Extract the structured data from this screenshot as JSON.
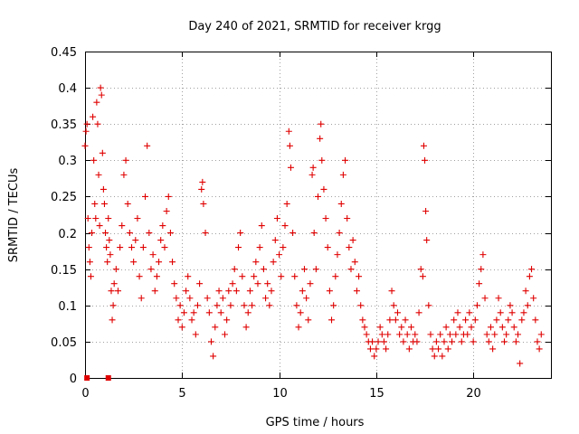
{
  "chart_data": {
    "type": "scatter",
    "title": "Day 240 of 2021, SRMTID for receiver krgg",
    "xlabel": "GPS time / hours",
    "ylabel": "SRMTID / TECUs",
    "xlim": [
      0,
      24
    ],
    "ylim": [
      0,
      0.45
    ],
    "x_ticks": [
      0,
      5,
      10,
      15,
      20
    ],
    "x_tick_labels": [
      "0",
      "5",
      "10",
      "15",
      "20"
    ],
    "y_ticks": [
      0,
      0.05,
      0.1,
      0.15,
      0.2,
      0.25,
      0.3,
      0.35,
      0.4,
      0.45
    ],
    "y_tick_labels": [
      "0",
      "0.05",
      "0.1",
      "0.15",
      "0.2",
      "0.25",
      "0.3",
      "0.35",
      "0.4",
      "0.45"
    ],
    "grid": true,
    "marker": "plus",
    "color": "#e00000",
    "zero_markers": [
      {
        "x": 0.1,
        "y": 0
      },
      {
        "x": 1.2,
        "y": 0
      }
    ],
    "series": [
      {
        "name": "SRMTID",
        "note": "representative sample of the dense point cloud",
        "points": [
          [
            0.0,
            0.32
          ],
          [
            0.05,
            0.34
          ],
          [
            0.1,
            0.35
          ],
          [
            0.15,
            0.22
          ],
          [
            0.2,
            0.18
          ],
          [
            0.25,
            0.16
          ],
          [
            0.3,
            0.14
          ],
          [
            0.35,
            0.2
          ],
          [
            0.4,
            0.36
          ],
          [
            0.45,
            0.3
          ],
          [
            0.5,
            0.24
          ],
          [
            0.55,
            0.22
          ],
          [
            0.6,
            0.38
          ],
          [
            0.65,
            0.35
          ],
          [
            0.7,
            0.28
          ],
          [
            0.75,
            0.21
          ],
          [
            0.8,
            0.4
          ],
          [
            0.85,
            0.39
          ],
          [
            0.9,
            0.31
          ],
          [
            0.95,
            0.26
          ],
          [
            1.0,
            0.24
          ],
          [
            1.05,
            0.2
          ],
          [
            1.1,
            0.18
          ],
          [
            1.15,
            0.16
          ],
          [
            1.2,
            0.22
          ],
          [
            1.25,
            0.19
          ],
          [
            1.3,
            0.17
          ],
          [
            1.35,
            0.12
          ],
          [
            1.4,
            0.08
          ],
          [
            1.45,
            0.1
          ],
          [
            1.5,
            0.13
          ],
          [
            1.6,
            0.15
          ],
          [
            1.7,
            0.12
          ],
          [
            1.8,
            0.18
          ],
          [
            1.9,
            0.21
          ],
          [
            2.0,
            0.28
          ],
          [
            2.1,
            0.3
          ],
          [
            2.2,
            0.24
          ],
          [
            2.3,
            0.2
          ],
          [
            2.4,
            0.18
          ],
          [
            2.5,
            0.16
          ],
          [
            2.6,
            0.19
          ],
          [
            2.7,
            0.22
          ],
          [
            2.8,
            0.14
          ],
          [
            2.9,
            0.11
          ],
          [
            3.0,
            0.18
          ],
          [
            3.1,
            0.25
          ],
          [
            3.2,
            0.32
          ],
          [
            3.3,
            0.2
          ],
          [
            3.4,
            0.15
          ],
          [
            3.5,
            0.17
          ],
          [
            3.6,
            0.12
          ],
          [
            3.7,
            0.14
          ],
          [
            3.8,
            0.16
          ],
          [
            3.9,
            0.19
          ],
          [
            4.0,
            0.21
          ],
          [
            4.1,
            0.18
          ],
          [
            4.2,
            0.23
          ],
          [
            4.3,
            0.25
          ],
          [
            4.4,
            0.2
          ],
          [
            4.5,
            0.16
          ],
          [
            4.6,
            0.13
          ],
          [
            4.7,
            0.11
          ],
          [
            4.8,
            0.08
          ],
          [
            4.9,
            0.1
          ],
          [
            5.0,
            0.07
          ],
          [
            5.1,
            0.09
          ],
          [
            5.2,
            0.12
          ],
          [
            5.3,
            0.14
          ],
          [
            5.4,
            0.11
          ],
          [
            5.5,
            0.08
          ],
          [
            5.6,
            0.09
          ],
          [
            5.7,
            0.06
          ],
          [
            5.8,
            0.1
          ],
          [
            5.9,
            0.13
          ],
          [
            6.0,
            0.26
          ],
          [
            6.05,
            0.27
          ],
          [
            6.1,
            0.24
          ],
          [
            6.2,
            0.2
          ],
          [
            6.3,
            0.11
          ],
          [
            6.4,
            0.09
          ],
          [
            6.5,
            0.05
          ],
          [
            6.6,
            0.03
          ],
          [
            6.7,
            0.07
          ],
          [
            6.8,
            0.1
          ],
          [
            6.9,
            0.12
          ],
          [
            7.0,
            0.09
          ],
          [
            7.1,
            0.11
          ],
          [
            7.2,
            0.06
          ],
          [
            7.3,
            0.08
          ],
          [
            7.4,
            0.12
          ],
          [
            7.5,
            0.1
          ],
          [
            7.6,
            0.13
          ],
          [
            7.7,
            0.15
          ],
          [
            7.8,
            0.12
          ],
          [
            7.9,
            0.18
          ],
          [
            8.0,
            0.2
          ],
          [
            8.1,
            0.14
          ],
          [
            8.2,
            0.1
          ],
          [
            8.3,
            0.07
          ],
          [
            8.4,
            0.09
          ],
          [
            8.5,
            0.12
          ],
          [
            8.6,
            0.1
          ],
          [
            8.7,
            0.14
          ],
          [
            8.8,
            0.16
          ],
          [
            8.9,
            0.13
          ],
          [
            9.0,
            0.18
          ],
          [
            9.1,
            0.21
          ],
          [
            9.2,
            0.15
          ],
          [
            9.3,
            0.11
          ],
          [
            9.4,
            0.13
          ],
          [
            9.5,
            0.1
          ],
          [
            9.6,
            0.12
          ],
          [
            9.7,
            0.16
          ],
          [
            9.8,
            0.19
          ],
          [
            9.9,
            0.22
          ],
          [
            10.0,
            0.17
          ],
          [
            10.1,
            0.14
          ],
          [
            10.2,
            0.18
          ],
          [
            10.3,
            0.21
          ],
          [
            10.4,
            0.24
          ],
          [
            10.5,
            0.34
          ],
          [
            10.55,
            0.32
          ],
          [
            10.6,
            0.29
          ],
          [
            10.7,
            0.2
          ],
          [
            10.8,
            0.14
          ],
          [
            10.9,
            0.1
          ],
          [
            11.0,
            0.07
          ],
          [
            11.1,
            0.09
          ],
          [
            11.2,
            0.12
          ],
          [
            11.3,
            0.15
          ],
          [
            11.4,
            0.11
          ],
          [
            11.5,
            0.08
          ],
          [
            11.6,
            0.13
          ],
          [
            11.7,
            0.28
          ],
          [
            11.75,
            0.29
          ],
          [
            11.8,
            0.2
          ],
          [
            11.9,
            0.15
          ],
          [
            12.0,
            0.25
          ],
          [
            12.1,
            0.33
          ],
          [
            12.15,
            0.35
          ],
          [
            12.2,
            0.3
          ],
          [
            12.3,
            0.26
          ],
          [
            12.4,
            0.22
          ],
          [
            12.5,
            0.18
          ],
          [
            12.6,
            0.12
          ],
          [
            12.7,
            0.08
          ],
          [
            12.8,
            0.1
          ],
          [
            12.9,
            0.14
          ],
          [
            13.0,
            0.17
          ],
          [
            13.1,
            0.2
          ],
          [
            13.2,
            0.24
          ],
          [
            13.3,
            0.28
          ],
          [
            13.4,
            0.3
          ],
          [
            13.5,
            0.22
          ],
          [
            13.6,
            0.18
          ],
          [
            13.7,
            0.15
          ],
          [
            13.8,
            0.19
          ],
          [
            13.9,
            0.16
          ],
          [
            14.0,
            0.12
          ],
          [
            14.1,
            0.14
          ],
          [
            14.2,
            0.1
          ],
          [
            14.3,
            0.08
          ],
          [
            14.4,
            0.07
          ],
          [
            14.5,
            0.06
          ],
          [
            14.6,
            0.05
          ],
          [
            14.7,
            0.04
          ],
          [
            14.8,
            0.05
          ],
          [
            14.9,
            0.03
          ],
          [
            15.0,
            0.04
          ],
          [
            15.1,
            0.05
          ],
          [
            15.2,
            0.07
          ],
          [
            15.3,
            0.06
          ],
          [
            15.4,
            0.05
          ],
          [
            15.5,
            0.04
          ],
          [
            15.6,
            0.06
          ],
          [
            15.7,
            0.08
          ],
          [
            15.8,
            0.12
          ],
          [
            15.9,
            0.1
          ],
          [
            16.0,
            0.08
          ],
          [
            16.1,
            0.09
          ],
          [
            16.2,
            0.06
          ],
          [
            16.3,
            0.07
          ],
          [
            16.4,
            0.05
          ],
          [
            16.5,
            0.08
          ],
          [
            16.6,
            0.06
          ],
          [
            16.7,
            0.04
          ],
          [
            16.8,
            0.07
          ],
          [
            16.9,
            0.05
          ],
          [
            17.0,
            0.06
          ],
          [
            17.1,
            0.05
          ],
          [
            17.2,
            0.09
          ],
          [
            17.3,
            0.15
          ],
          [
            17.4,
            0.14
          ],
          [
            17.45,
            0.32
          ],
          [
            17.5,
            0.3
          ],
          [
            17.55,
            0.23
          ],
          [
            17.6,
            0.19
          ],
          [
            17.7,
            0.1
          ],
          [
            17.8,
            0.06
          ],
          [
            17.9,
            0.04
          ],
          [
            18.0,
            0.03
          ],
          [
            18.1,
            0.05
          ],
          [
            18.2,
            0.04
          ],
          [
            18.3,
            0.06
          ],
          [
            18.4,
            0.03
          ],
          [
            18.5,
            0.05
          ],
          [
            18.6,
            0.07
          ],
          [
            18.7,
            0.04
          ],
          [
            18.8,
            0.06
          ],
          [
            18.9,
            0.05
          ],
          [
            19.0,
            0.08
          ],
          [
            19.1,
            0.06
          ],
          [
            19.2,
            0.09
          ],
          [
            19.3,
            0.07
          ],
          [
            19.4,
            0.05
          ],
          [
            19.5,
            0.06
          ],
          [
            19.6,
            0.08
          ],
          [
            19.7,
            0.06
          ],
          [
            19.8,
            0.09
          ],
          [
            19.9,
            0.07
          ],
          [
            20.0,
            0.05
          ],
          [
            20.1,
            0.08
          ],
          [
            20.2,
            0.1
          ],
          [
            20.3,
            0.13
          ],
          [
            20.4,
            0.15
          ],
          [
            20.5,
            0.17
          ],
          [
            20.6,
            0.11
          ],
          [
            20.7,
            0.06
          ],
          [
            20.8,
            0.05
          ],
          [
            20.9,
            0.07
          ],
          [
            21.0,
            0.04
          ],
          [
            21.1,
            0.06
          ],
          [
            21.2,
            0.08
          ],
          [
            21.3,
            0.11
          ],
          [
            21.4,
            0.09
          ],
          [
            21.5,
            0.07
          ],
          [
            21.6,
            0.05
          ],
          [
            21.7,
            0.06
          ],
          [
            21.8,
            0.08
          ],
          [
            21.9,
            0.1
          ],
          [
            22.0,
            0.09
          ],
          [
            22.1,
            0.07
          ],
          [
            22.2,
            0.05
          ],
          [
            22.3,
            0.06
          ],
          [
            22.4,
            0.02
          ],
          [
            22.5,
            0.08
          ],
          [
            22.6,
            0.09
          ],
          [
            22.7,
            0.12
          ],
          [
            22.8,
            0.1
          ],
          [
            22.9,
            0.14
          ],
          [
            23.0,
            0.15
          ],
          [
            23.1,
            0.11
          ],
          [
            23.2,
            0.08
          ],
          [
            23.3,
            0.05
          ],
          [
            23.4,
            0.04
          ],
          [
            23.5,
            0.06
          ]
        ]
      }
    ]
  }
}
